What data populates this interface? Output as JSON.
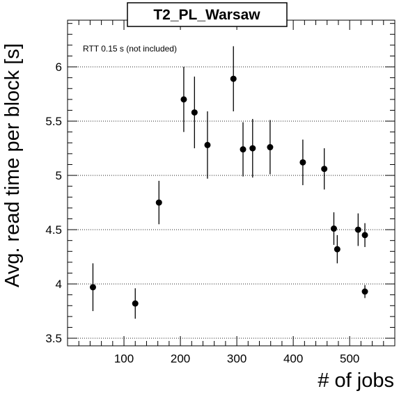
{
  "chart_data": {
    "type": "scatter",
    "title": "T2_PL_Warsaw",
    "xlabel": "# of jobs",
    "ylabel": "Avg. read time per block [s]",
    "annotation": "RTT 0.15 s (not included)",
    "xlim": [
      0,
      580
    ],
    "ylim": [
      3.43,
      6.43
    ],
    "x_ticks": [
      100,
      200,
      300,
      400,
      500
    ],
    "y_ticks": [
      3.5,
      4,
      4.5,
      5,
      5.5,
      6
    ],
    "x_tick_labels": [
      "100",
      "200",
      "300",
      "400",
      "500"
    ],
    "y_tick_labels": [
      "3.5",
      "4",
      "4.5",
      "5",
      "5.5",
      "6"
    ],
    "grid": "horizontal dotted",
    "points": [
      {
        "x": 45,
        "y": 3.97,
        "err": 0.22
      },
      {
        "x": 120,
        "y": 3.82,
        "err": 0.14
      },
      {
        "x": 162,
        "y": 4.75,
        "err": 0.2
      },
      {
        "x": 206,
        "y": 5.7,
        "err": 0.3
      },
      {
        "x": 225,
        "y": 5.58,
        "err": 0.33
      },
      {
        "x": 248,
        "y": 5.28,
        "err": 0.31
      },
      {
        "x": 294,
        "y": 5.89,
        "err": 0.3
      },
      {
        "x": 311,
        "y": 5.24,
        "err": 0.25
      },
      {
        "x": 328,
        "y": 5.25,
        "err": 0.27
      },
      {
        "x": 359,
        "y": 5.26,
        "err": 0.25
      },
      {
        "x": 417,
        "y": 5.12,
        "err": 0.21
      },
      {
        "x": 455,
        "y": 5.06,
        "err": 0.19
      },
      {
        "x": 472,
        "y": 4.51,
        "err": 0.15
      },
      {
        "x": 478,
        "y": 4.32,
        "err": 0.13
      },
      {
        "x": 515,
        "y": 4.5,
        "err": 0.15
      },
      {
        "x": 527,
        "y": 4.45,
        "err": 0.11
      },
      {
        "x": 527,
        "y": 3.93,
        "err": 0.06
      }
    ]
  }
}
